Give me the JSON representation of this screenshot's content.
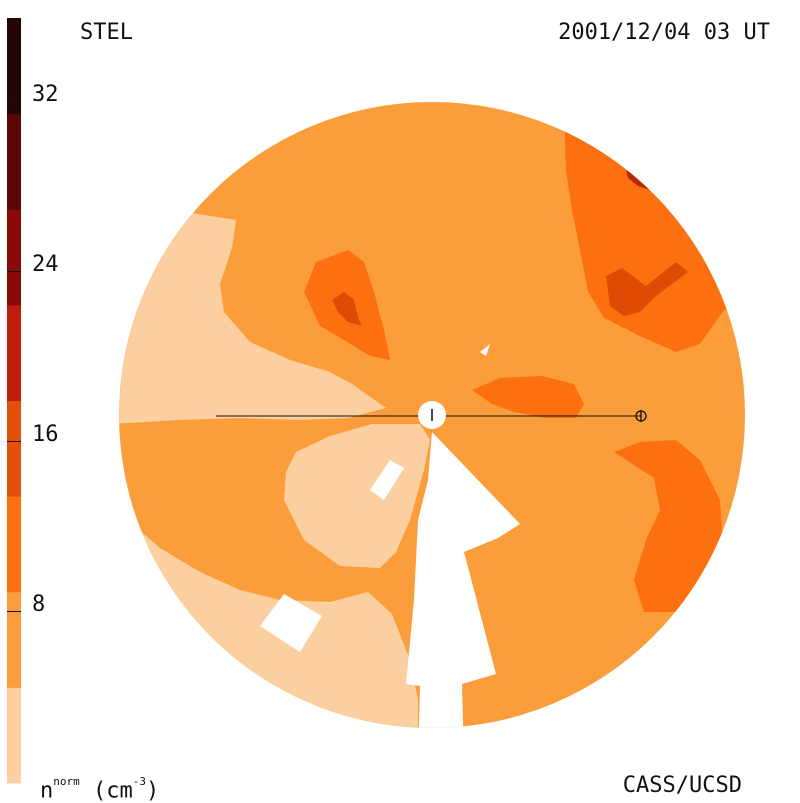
{
  "header": {
    "top_left": "STEL",
    "top_right": "2001/12/04 03 UT"
  },
  "footer": {
    "bottom_right": "CASS/UCSD"
  },
  "colorbar": {
    "quantity": "n",
    "superscript": "norm",
    "unit_open": "(cm",
    "unit_superscript": "-3",
    "unit_close": ")",
    "tick_labels": [
      "32",
      "24",
      "16",
      "8"
    ],
    "bands": [
      "#fccfa0",
      "#fb9d3a",
      "#fc7010",
      "#e4500a",
      "#c01c0c",
      "#8b0a08",
      "#5a0705",
      "#220505"
    ]
  },
  "map": {
    "palette": {
      "lightest": "#fccfa0",
      "light": "#fb9d3a",
      "medium": "#fc7010",
      "dark": "#df4a05",
      "darker": "#b42808",
      "gap": "#ffffff",
      "line": "#111111"
    }
  }
}
